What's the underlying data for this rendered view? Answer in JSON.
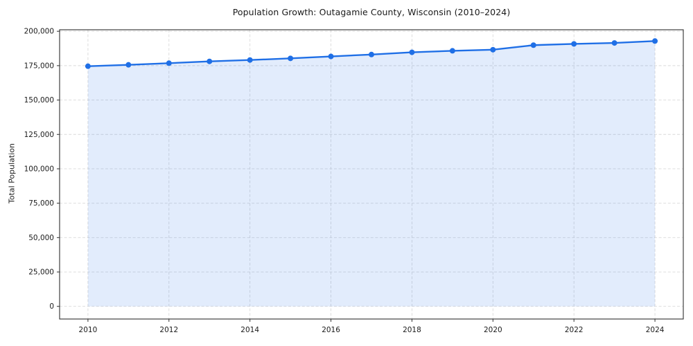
{
  "chart_data": {
    "type": "line",
    "title": "Population Growth: Outagamie County, Wisconsin (2010–2024)",
    "xlabel": "",
    "ylabel": "Total Population",
    "x": [
      2010,
      2011,
      2012,
      2013,
      2014,
      2015,
      2016,
      2017,
      2018,
      2019,
      2020,
      2021,
      2022,
      2023,
      2024
    ],
    "values": [
      174600,
      175600,
      176800,
      178100,
      179100,
      180300,
      181700,
      183100,
      184700,
      185800,
      186600,
      189900,
      190800,
      191500,
      192900
    ],
    "series_name": "Total Population",
    "xticks": [
      2010,
      2012,
      2014,
      2016,
      2018,
      2020,
      2022,
      2024
    ],
    "xtick_labels": [
      "2010",
      "2012",
      "2014",
      "2016",
      "2018",
      "2020",
      "2022",
      "2024"
    ],
    "yticks": [
      0,
      25000,
      50000,
      75000,
      100000,
      125000,
      150000,
      175000,
      200000
    ],
    "ytick_labels": [
      "0",
      "25,000",
      "50,000",
      "75,000",
      "100,000",
      "125,000",
      "150,000",
      "175,000",
      "200,000"
    ],
    "xlim": [
      2009.3,
      2024.7
    ],
    "ylim": [
      -9200,
      201100
    ],
    "grid": true,
    "legend": "none",
    "area_fill_to": 0,
    "colors": {
      "line": "#1f6fe6",
      "marker": "#1f6fe6",
      "fill": "rgba(31,111,230,0.13)",
      "grid": "#d9d9d9",
      "spine": "#2e2e2e",
      "tick_text": "#1a1a1a",
      "background": "#ffffff"
    }
  }
}
